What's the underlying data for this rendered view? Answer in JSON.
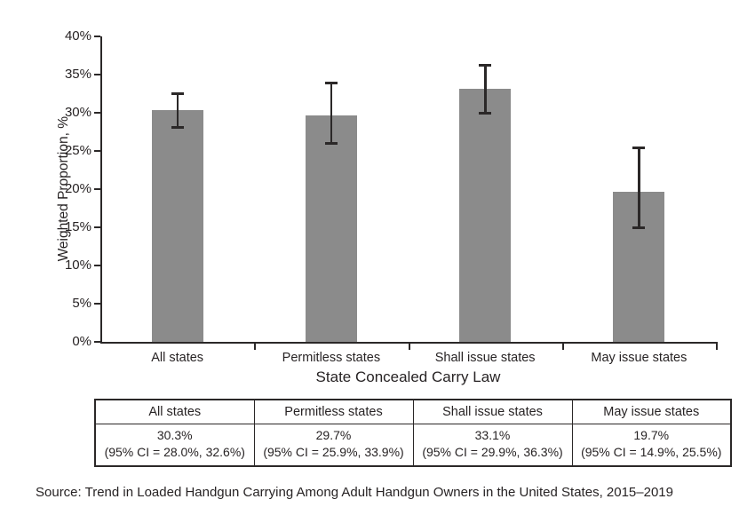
{
  "chart_data": {
    "type": "bar",
    "title": "",
    "xlabel": "State Concealed Carry Law",
    "ylabel": "Weighted Proportion, %",
    "ylim": [
      0,
      40
    ],
    "grid": false,
    "legend": false,
    "yticks": [
      {
        "label": "0%",
        "value": 0
      },
      {
        "label": "5%",
        "value": 5
      },
      {
        "label": "10%",
        "value": 10
      },
      {
        "label": "15%",
        "value": 15
      },
      {
        "label": "20%",
        "value": 20
      },
      {
        "label": "25%",
        "value": 25
      },
      {
        "label": "30%",
        "value": 30
      },
      {
        "label": "35%",
        "value": 35
      },
      {
        "label": "40%",
        "value": 40
      }
    ],
    "categories": [
      "All states",
      "Permitless states",
      "Shall issue states",
      "May issue states"
    ],
    "series": [
      {
        "name": "Weighted proportion",
        "values": [
          30.3,
          29.7,
          33.1,
          19.7
        ],
        "ci_low": [
          28.0,
          25.9,
          29.9,
          14.9
        ],
        "ci_high": [
          32.6,
          33.9,
          36.3,
          25.5
        ]
      }
    ],
    "bar_color": "#8b8b8b",
    "axis_color": "#2b2828"
  },
  "table": {
    "columns": [
      {
        "header": "All states",
        "value": "30.3%",
        "ci": "(95% CI = 28.0%, 32.6%)"
      },
      {
        "header": "Permitless states",
        "value": "29.7%",
        "ci": "(95% CI = 25.9%, 33.9%)"
      },
      {
        "header": "Shall issue states",
        "value": "33.1%",
        "ci": "(95% CI = 29.9%, 36.3%)"
      },
      {
        "header": "May issue states",
        "value": "19.7%",
        "ci": "(95% CI = 14.9%, 25.5%)"
      }
    ]
  },
  "source": "Source: Trend in Loaded Handgun Carrying Among Adult Handgun Owners in the United States, 2015–2019"
}
